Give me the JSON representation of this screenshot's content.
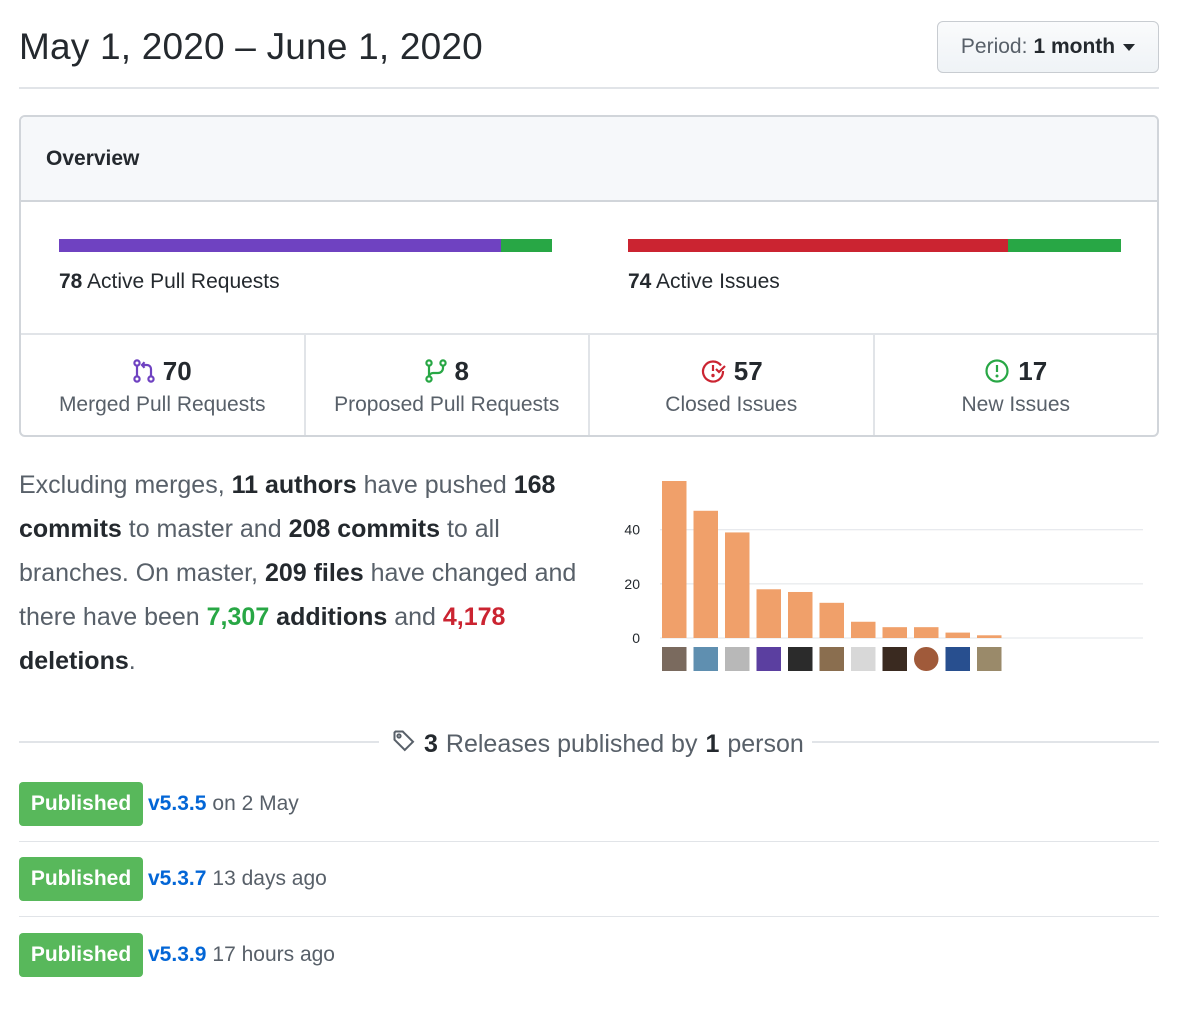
{
  "header": {
    "title": "May 1, 2020 – June 1, 2020",
    "period_label": "Period:",
    "period_value": "1 month"
  },
  "overview": {
    "heading": "Overview",
    "pull_requests": {
      "count": "78",
      "label": "Active Pull Requests",
      "merged_fraction": 0.897,
      "colors": {
        "merged": "#6f42c1",
        "open": "#28a745"
      }
    },
    "issues": {
      "count": "74",
      "label": "Active Issues",
      "closed_fraction": 0.77,
      "colors": {
        "closed": "#cb2431",
        "open": "#28a745"
      }
    },
    "stats": [
      {
        "icon": "git-merge-icon",
        "value": "70",
        "label": "Merged Pull Requests",
        "color": "#6f42c1"
      },
      {
        "icon": "git-pull-request-icon",
        "value": "8",
        "label": "Proposed Pull Requests",
        "color": "#28a745"
      },
      {
        "icon": "issue-closed-icon",
        "value": "57",
        "label": "Closed Issues",
        "color": "#cb2431"
      },
      {
        "icon": "issue-opened-icon",
        "value": "17",
        "label": "New Issues",
        "color": "#28a745"
      }
    ]
  },
  "summary": {
    "t1": "Excluding merges, ",
    "authors": "11 authors",
    "t2": " have pushed ",
    "commits_master": "168 commits",
    "t3": " to master and ",
    "commits_all": "208 commits",
    "t4": " to all branches. On master, ",
    "files": "209 files",
    "t5": " have changed and there have been ",
    "additions_num": "7,307",
    "additions_word": " additions",
    "t6": " and ",
    "deletions_num": "4,178",
    "deletions_word": " deletions",
    "t7": "."
  },
  "chart_data": {
    "type": "bar",
    "categories": [
      "author 1",
      "author 2",
      "author 3",
      "author 4",
      "author 5",
      "author 6",
      "author 7",
      "author 8",
      "author 9",
      "author 10",
      "author 11"
    ],
    "values": [
      58,
      47,
      39,
      18,
      17,
      13,
      6,
      4,
      4,
      2,
      1
    ],
    "yticks": [
      "0",
      "20",
      "40"
    ],
    "ylim": [
      0,
      58
    ],
    "bar_color": "#f0a06a",
    "grid": true
  },
  "releases": {
    "count": "3",
    "t1": "Releases published by",
    "people": "1",
    "t2": "person",
    "items": [
      {
        "badge": "Published",
        "version": "v5.3.5",
        "when": "on 2 May"
      },
      {
        "badge": "Published",
        "version": "v5.3.7",
        "when": "13 days ago"
      },
      {
        "badge": "Published",
        "version": "v5.3.9",
        "when": "17 hours ago"
      }
    ]
  }
}
